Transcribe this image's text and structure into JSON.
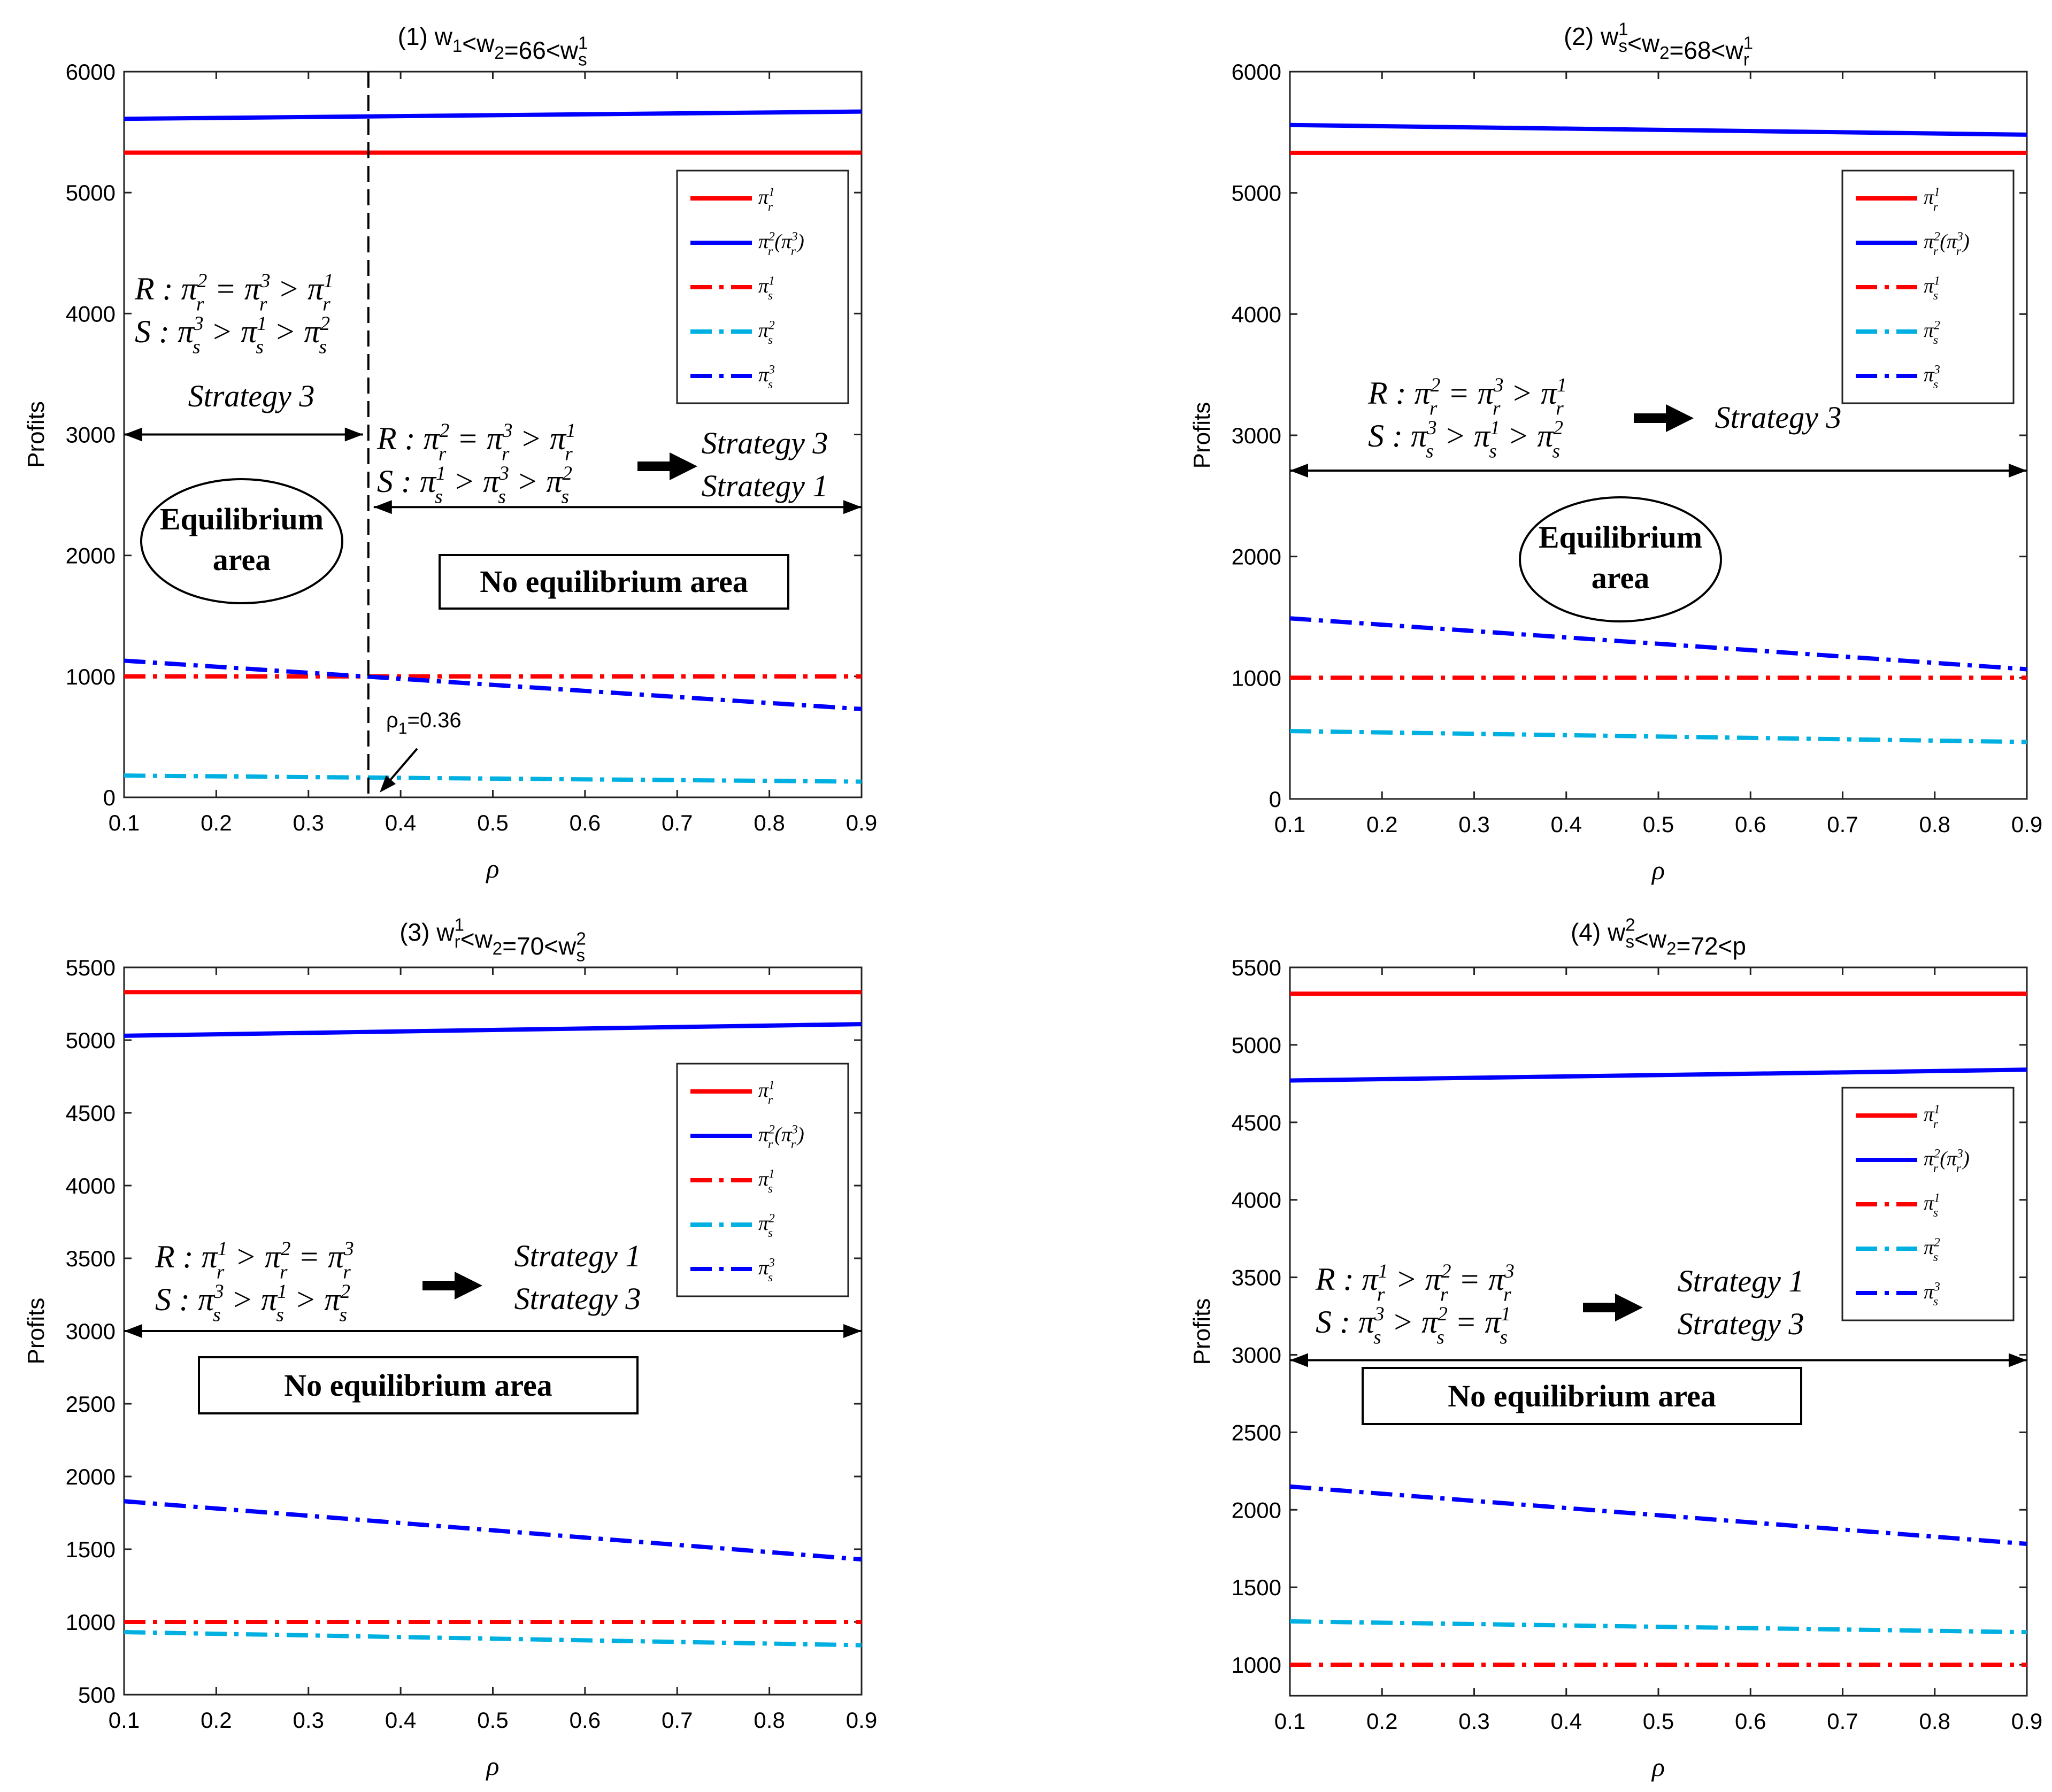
{
  "chart_data": [
    {
      "type": "line",
      "title": "(1) w",
      "title_parts": [
        {
          "t": "(1) w",
          "s": ""
        },
        {
          "t": "1",
          "s": "sub"
        },
        {
          "t": "<w",
          "s": ""
        },
        {
          "t": "2",
          "s": "sub"
        },
        {
          "t": "=66<w",
          "s": ""
        },
        {
          "t": "1",
          "s": "sup"
        },
        {
          "t": "s",
          "s": "sub2"
        }
      ],
      "xlabel": "ρ",
      "ylabel": "Profits",
      "xlim": [
        0.1,
        0.9
      ],
      "ylim": [
        0,
        6000
      ],
      "xticks": [
        "0.1",
        "0.2",
        "0.3",
        "0.4",
        "0.5",
        "0.6",
        "0.7",
        "0.8",
        "0.9"
      ],
      "yticks": [
        "0",
        "1000",
        "2000",
        "3000",
        "4000",
        "5000",
        "6000"
      ],
      "series": [
        {
          "name": "π_r^1",
          "style": "solid",
          "color": "#ff0000",
          "x": [
            0.1,
            0.9
          ],
          "y": [
            5330,
            5330
          ]
        },
        {
          "name": "π_r^2(π_r^3)",
          "style": "solid",
          "color": "#0000ff",
          "x": [
            0.1,
            0.9
          ],
          "y": [
            5610,
            5670
          ]
        },
        {
          "name": "π_s^1",
          "style": "dashdot",
          "color": "#ff0000",
          "x": [
            0.1,
            0.9
          ],
          "y": [
            1000,
            1000
          ]
        },
        {
          "name": "π_s^2",
          "style": "dashdot",
          "color": "#00b0e0",
          "x": [
            0.1,
            0.9
          ],
          "y": [
            180,
            130
          ]
        },
        {
          "name": "π_s^3",
          "style": "dashdot",
          "color": "#0000ff",
          "x": [
            0.1,
            0.9
          ],
          "y": [
            1130,
            730
          ]
        }
      ],
      "legend": "top-right",
      "vline_x": 0.365,
      "point_label": "ρ1=0.36",
      "annotations": {
        "relations_a": [
          "R : π_r^2 = π_r^3 > π_r^1",
          "S : π_s^3 > π_s^1 > π_s^2"
        ],
        "strategy_a": "Strategy 3",
        "relations_b": [
          "R : π_r^2 = π_r^3 > π_r^1",
          "S : π_s^1 > π_s^3 > π_s^2"
        ],
        "strategy_b": [
          "Strategy 3",
          "Strategy 1"
        ],
        "equilibrium": [
          "Equilibrium",
          "area"
        ],
        "no_equilibrium": "No equilibrium area"
      }
    },
    {
      "type": "line",
      "title": "(2) w",
      "title_parts": [
        {
          "t": "(2) w",
          "s": ""
        },
        {
          "t": "1",
          "s": "sup"
        },
        {
          "t": "s",
          "s": "sub2"
        },
        {
          "t": "<w",
          "s": ""
        },
        {
          "t": "2",
          "s": "sub"
        },
        {
          "t": "=68<w",
          "s": ""
        },
        {
          "t": "1",
          "s": "sup"
        },
        {
          "t": "r",
          "s": "sub2"
        }
      ],
      "xlabel": "ρ",
      "ylabel": "Profits",
      "xlim": [
        0.1,
        0.9
      ],
      "ylim": [
        0,
        6000
      ],
      "xticks": [
        "0.1",
        "0.2",
        "0.3",
        "0.4",
        "0.5",
        "0.6",
        "0.7",
        "0.8",
        "0.9"
      ],
      "yticks": [
        "0",
        "1000",
        "2000",
        "3000",
        "4000",
        "5000",
        "6000"
      ],
      "series": [
        {
          "name": "π_r^1",
          "style": "solid",
          "color": "#ff0000",
          "x": [
            0.1,
            0.9
          ],
          "y": [
            5330,
            5330
          ]
        },
        {
          "name": "π_r^2(π_r^3)",
          "style": "solid",
          "color": "#0000ff",
          "x": [
            0.1,
            0.9
          ],
          "y": [
            5560,
            5480
          ]
        },
        {
          "name": "π_s^1",
          "style": "dashdot",
          "color": "#ff0000",
          "x": [
            0.1,
            0.9
          ],
          "y": [
            1000,
            1000
          ]
        },
        {
          "name": "π_s^2",
          "style": "dashdot",
          "color": "#00b0e0",
          "x": [
            0.1,
            0.9
          ],
          "y": [
            560,
            470
          ]
        },
        {
          "name": "π_s^3",
          "style": "dashdot",
          "color": "#0000ff",
          "x": [
            0.1,
            0.9
          ],
          "y": [
            1490,
            1070
          ]
        }
      ],
      "legend": "top-right",
      "annotations": {
        "relations": [
          "R : π_r^2 = π_r^3 > π_r^1",
          "S : π_s^3 > π_s^1 > π_s^2"
        ],
        "strategy": [
          "Strategy 3"
        ],
        "equilibrium": [
          "Equilibrium",
          "area"
        ]
      }
    },
    {
      "type": "line",
      "title": "(3) w",
      "title_parts": [
        {
          "t": "(3) w",
          "s": ""
        },
        {
          "t": "1",
          "s": "sup"
        },
        {
          "t": "r",
          "s": "sub2"
        },
        {
          "t": "<w",
          "s": ""
        },
        {
          "t": "2",
          "s": "sub"
        },
        {
          "t": "=70<w",
          "s": ""
        },
        {
          "t": "2",
          "s": "sup"
        },
        {
          "t": "s",
          "s": "sub2"
        }
      ],
      "xlabel": "ρ",
      "ylabel": "Profits",
      "xlim": [
        0.1,
        0.9
      ],
      "ylim": [
        500,
        5500
      ],
      "xticks": [
        "0.1",
        "0.2",
        "0.3",
        "0.4",
        "0.5",
        "0.6",
        "0.7",
        "0.8",
        "0.9"
      ],
      "yticks": [
        "500",
        "1000",
        "1500",
        "2000",
        "2500",
        "3000",
        "3500",
        "4000",
        "4500",
        "5000",
        "5500"
      ],
      "series": [
        {
          "name": "π_r^1",
          "style": "solid",
          "color": "#ff0000",
          "x": [
            0.1,
            0.9
          ],
          "y": [
            5330,
            5330
          ]
        },
        {
          "name": "π_r^2(π_r^3)",
          "style": "solid",
          "color": "#0000ff",
          "x": [
            0.1,
            0.9
          ],
          "y": [
            5030,
            5110
          ]
        },
        {
          "name": "π_s^1",
          "style": "dashdot",
          "color": "#ff0000",
          "x": [
            0.1,
            0.9
          ],
          "y": [
            1000,
            1000
          ]
        },
        {
          "name": "π_s^2",
          "style": "dashdot",
          "color": "#00b0e0",
          "x": [
            0.1,
            0.9
          ],
          "y": [
            930,
            840
          ]
        },
        {
          "name": "π_s^3",
          "style": "dashdot",
          "color": "#0000ff",
          "x": [
            0.1,
            0.9
          ],
          "y": [
            1830,
            1430
          ]
        }
      ],
      "legend": "top-right",
      "annotations": {
        "relations": [
          "R : π_r^1 > π_r^2 = π_r^3",
          "S : π_s^3 > π_s^1 > π_s^2"
        ],
        "strategy": [
          "Strategy 1",
          "Strategy 3"
        ],
        "no_equilibrium": "No equilibrium area"
      }
    },
    {
      "type": "line",
      "title": "(4) w",
      "title_parts": [
        {
          "t": "(4) w",
          "s": ""
        },
        {
          "t": "2",
          "s": "sup"
        },
        {
          "t": "s",
          "s": "sub2"
        },
        {
          "t": "<w",
          "s": ""
        },
        {
          "t": "2",
          "s": "sub"
        },
        {
          "t": "=72<p",
          "s": ""
        }
      ],
      "xlabel": "ρ",
      "ylabel": "Profits",
      "xlim": [
        0.1,
        0.9
      ],
      "ylim": [
        800,
        5500
      ],
      "xticks": [
        "0.1",
        "0.2",
        "0.3",
        "0.4",
        "0.5",
        "0.6",
        "0.7",
        "0.8",
        "0.9"
      ],
      "yticks": [
        "1000",
        "1500",
        "2000",
        "2500",
        "3000",
        "3500",
        "4000",
        "4500",
        "5000",
        "5500"
      ],
      "series": [
        {
          "name": "π_r^1",
          "style": "solid",
          "color": "#ff0000",
          "x": [
            0.1,
            0.9
          ],
          "y": [
            5330,
            5330
          ]
        },
        {
          "name": "π_r^2(π_r^3)",
          "style": "solid",
          "color": "#0000ff",
          "x": [
            0.1,
            0.9
          ],
          "y": [
            4770,
            4840
          ]
        },
        {
          "name": "π_s^1",
          "style": "dashdot",
          "color": "#ff0000",
          "x": [
            0.1,
            0.9
          ],
          "y": [
            1000,
            1000
          ]
        },
        {
          "name": "π_s^2",
          "style": "dashdot",
          "color": "#00b0e0",
          "x": [
            0.1,
            0.9
          ],
          "y": [
            1280,
            1210
          ]
        },
        {
          "name": "π_s^3",
          "style": "dashdot",
          "color": "#0000ff",
          "x": [
            0.1,
            0.9
          ],
          "y": [
            2150,
            1780
          ]
        }
      ],
      "legend": "top-right",
      "annotations": {
        "relations": [
          "R : π_r^1 > π_r^2 = π_r^3",
          "S : π_s^3 > π_s^2 = π_s^1"
        ],
        "strategy": [
          "Strategy 1",
          "Strategy 3"
        ],
        "no_equilibrium": "No equilibrium area"
      }
    }
  ]
}
